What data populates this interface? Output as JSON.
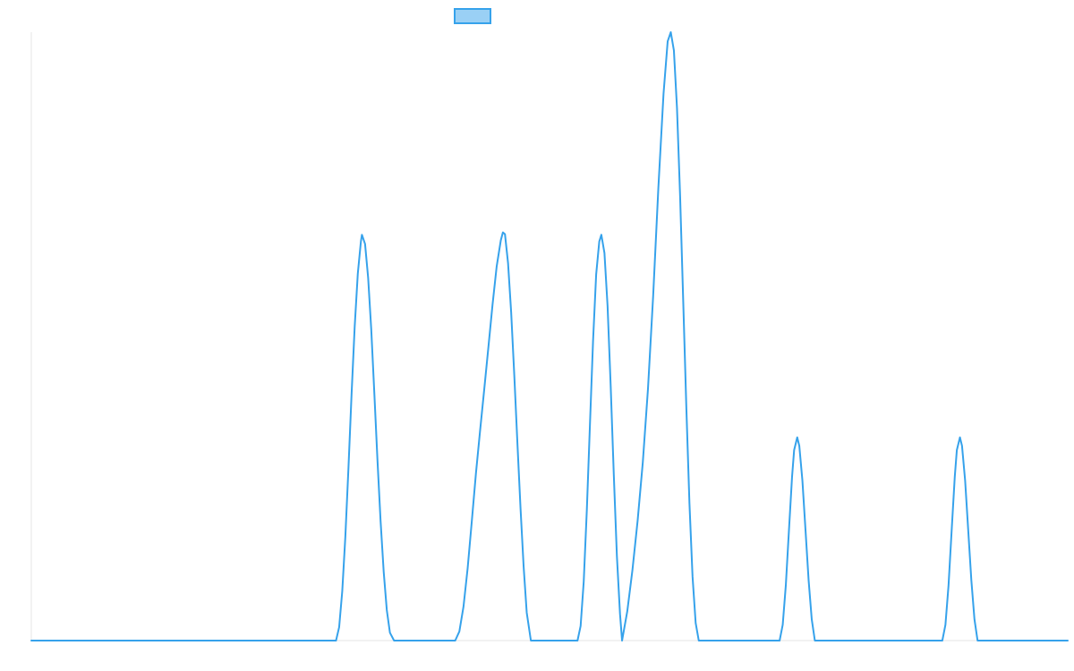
{
  "chart_data": {
    "type": "line",
    "title": "",
    "xlabel": "",
    "ylabel": "",
    "legend": {
      "placement": "top-center",
      "entries": [
        {
          "name": "",
          "color": "#36a2eb",
          "fill": "#9ad0f5"
        }
      ]
    },
    "grid": false,
    "xlim": [
      0,
      100
    ],
    "ylim": [
      0,
      100
    ],
    "series": [
      {
        "name": "",
        "color": "#36a2eb",
        "points": [
          [
            0,
            0
          ],
          [
            29.4,
            0
          ],
          [
            29.7,
            2.2
          ],
          [
            30.0,
            8.1
          ],
          [
            30.3,
            17.1
          ],
          [
            30.6,
            28.4
          ],
          [
            30.9,
            40.5
          ],
          [
            31.2,
            51.6
          ],
          [
            31.5,
            60.3
          ],
          [
            31.8,
            65.6
          ],
          [
            31.9,
            66.7
          ],
          [
            32.2,
            65.2
          ],
          [
            32.5,
            59.6
          ],
          [
            32.8,
            51.1
          ],
          [
            33.1,
            40.5
          ],
          [
            33.4,
            29.6
          ],
          [
            33.7,
            19.6
          ],
          [
            34.0,
            11.3
          ],
          [
            34.3,
            5.0
          ],
          [
            34.6,
            1.3
          ],
          [
            35.0,
            0
          ],
          [
            40.9,
            0
          ],
          [
            41.3,
            1.5
          ],
          [
            41.7,
            5.6
          ],
          [
            42.1,
            11.9
          ],
          [
            42.5,
            19.6
          ],
          [
            42.9,
            27.5
          ],
          [
            43.3,
            34.5
          ],
          [
            43.7,
            41.3
          ],
          [
            44.1,
            48.2
          ],
          [
            44.5,
            55.2
          ],
          [
            44.9,
            61.5
          ],
          [
            45.3,
            65.8
          ],
          [
            45.5,
            67.1
          ],
          [
            45.7,
            66.8
          ],
          [
            46.0,
            62.0
          ],
          [
            46.3,
            53.9
          ],
          [
            46.6,
            43.6
          ],
          [
            46.9,
            32.5
          ],
          [
            47.2,
            21.8
          ],
          [
            47.5,
            12.2
          ],
          [
            47.8,
            4.6
          ],
          [
            48.2,
            0
          ],
          [
            52.7,
            0
          ],
          [
            53.0,
            2.4
          ],
          [
            53.3,
            9.7
          ],
          [
            53.6,
            21.5
          ],
          [
            53.9,
            35.5
          ],
          [
            54.2,
            49.3
          ],
          [
            54.5,
            60.2
          ],
          [
            54.8,
            65.6
          ],
          [
            55.0,
            66.7
          ],
          [
            55.3,
            63.7
          ],
          [
            55.6,
            55.0
          ],
          [
            55.9,
            41.9
          ],
          [
            56.2,
            27.3
          ],
          [
            56.5,
            13.9
          ],
          [
            56.8,
            4.4
          ],
          [
            57.0,
            0
          ],
          [
            57.5,
            4.8
          ],
          [
            58.0,
            11.6
          ],
          [
            58.5,
            19.7
          ],
          [
            59.0,
            29.3
          ],
          [
            59.5,
            41.4
          ],
          [
            60.0,
            56.7
          ],
          [
            60.5,
            74.4
          ],
          [
            61.0,
            89.9
          ],
          [
            61.4,
            98.5
          ],
          [
            61.7,
            100
          ],
          [
            62.0,
            97.0
          ],
          [
            62.3,
            87.5
          ],
          [
            62.6,
            73.0
          ],
          [
            62.9,
            55.8
          ],
          [
            63.2,
            38.3
          ],
          [
            63.5,
            22.6
          ],
          [
            63.8,
            10.5
          ],
          [
            64.1,
            2.9
          ],
          [
            64.4,
            0
          ],
          [
            72.2,
            0
          ],
          [
            72.5,
            2.6
          ],
          [
            72.8,
            9.1
          ],
          [
            73.1,
            18.1
          ],
          [
            73.4,
            26.9
          ],
          [
            73.6,
            31.3
          ],
          [
            73.9,
            33.4
          ],
          [
            74.1,
            32.0
          ],
          [
            74.4,
            26.3
          ],
          [
            74.7,
            18.1
          ],
          [
            75.0,
            9.9
          ],
          [
            75.3,
            3.5
          ],
          [
            75.6,
            0
          ],
          [
            87.9,
            0
          ],
          [
            88.2,
            2.6
          ],
          [
            88.5,
            9.1
          ],
          [
            88.8,
            18.1
          ],
          [
            89.1,
            26.9
          ],
          [
            89.3,
            31.3
          ],
          [
            89.6,
            33.4
          ],
          [
            89.8,
            32.0
          ],
          [
            90.1,
            26.3
          ],
          [
            90.4,
            18.1
          ],
          [
            90.7,
            9.9
          ],
          [
            91.0,
            3.5
          ],
          [
            91.3,
            0
          ],
          [
            100,
            0
          ]
        ]
      }
    ]
  }
}
